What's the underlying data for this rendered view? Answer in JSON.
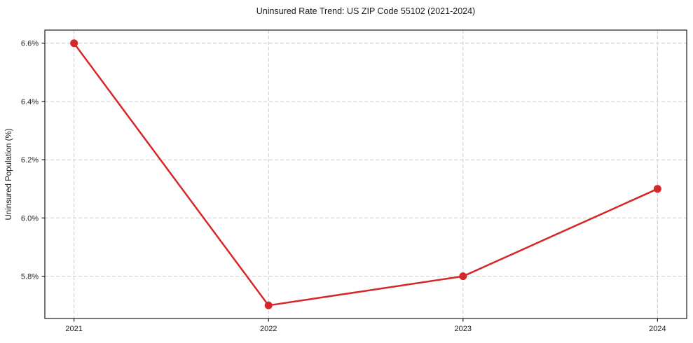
{
  "chart_data": {
    "type": "line",
    "title": "Uninsured Rate Trend: US ZIP Code 55102 (2021-2024)",
    "xlabel": "",
    "ylabel": "Uninsured Population (%)",
    "x": [
      2021,
      2022,
      2023,
      2024
    ],
    "series": [
      {
        "name": "Uninsured rate",
        "values": [
          6.6,
          5.7,
          5.8,
          6.1
        ],
        "color": "#d62728"
      }
    ],
    "xtick_values": [
      2021,
      2022,
      2023,
      2024
    ],
    "xtick_labels": [
      "2021",
      "2022",
      "2023",
      "2024"
    ],
    "ytick_values": [
      5.8,
      6.0,
      6.2,
      6.4,
      6.6
    ],
    "ytick_labels": [
      "5.8%",
      "6.0%",
      "6.2%",
      "6.4%",
      "6.6%"
    ],
    "xlim": [
      2020.85,
      2024.15
    ],
    "ylim": [
      5.655,
      6.645
    ],
    "grid": true,
    "grid_color": "#cccccc",
    "grid_dash": "5 3",
    "axis_color": "#1a1a1a",
    "background": "#ffffff",
    "marker": "circle",
    "marker_radius": 5.5,
    "line_width": 2.5,
    "legend": "none"
  }
}
